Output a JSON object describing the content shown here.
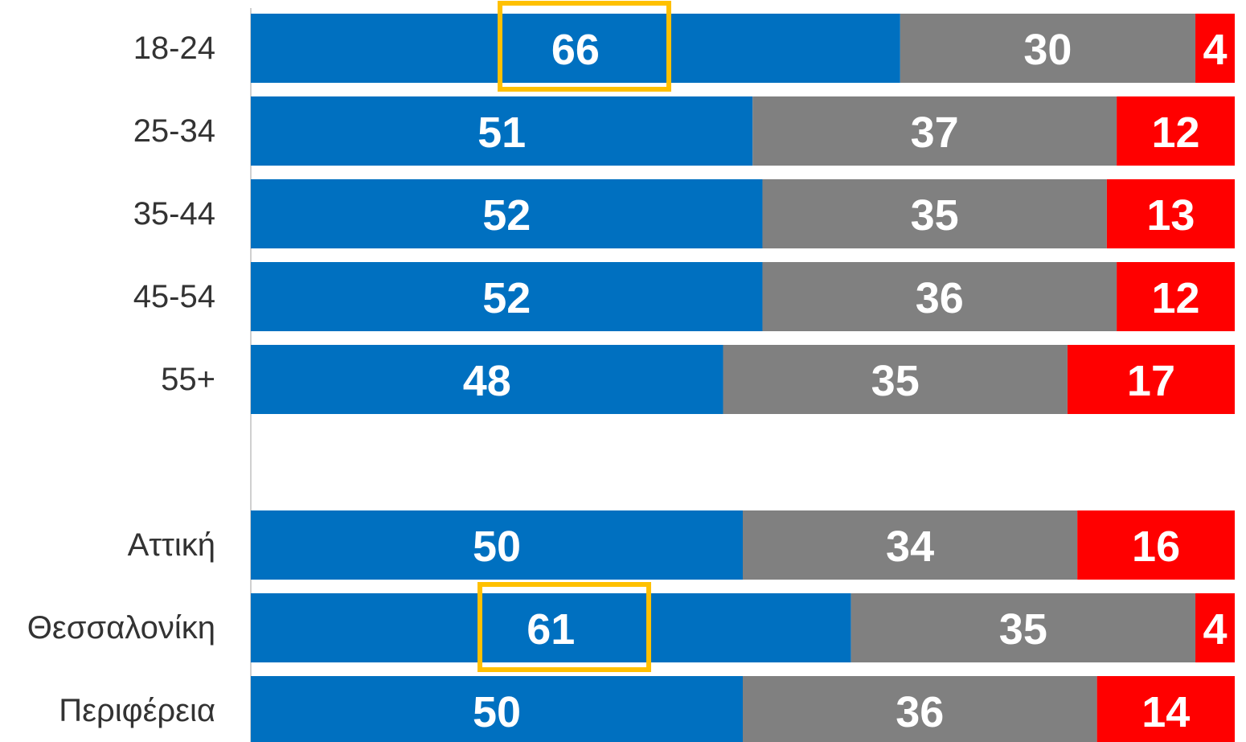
{
  "chart_data": {
    "type": "stacked_barh",
    "categories": [
      "18-24",
      "25-34",
      "35-44",
      "45-54",
      "55+",
      null,
      "Αττική",
      "Θεσσαλονίκη",
      "Περιφέρεια"
    ],
    "series": [
      {
        "color": "#0070c0",
        "values": [
          66,
          51,
          52,
          52,
          48,
          null,
          50,
          61,
          50
        ]
      },
      {
        "color": "#808080",
        "values": [
          30,
          37,
          35,
          36,
          35,
          null,
          34,
          35,
          36
        ]
      },
      {
        "color": "#ff0000",
        "values": [
          4,
          12,
          13,
          12,
          17,
          null,
          16,
          4,
          14
        ]
      }
    ],
    "xlim": [
      0,
      100
    ]
  }
}
